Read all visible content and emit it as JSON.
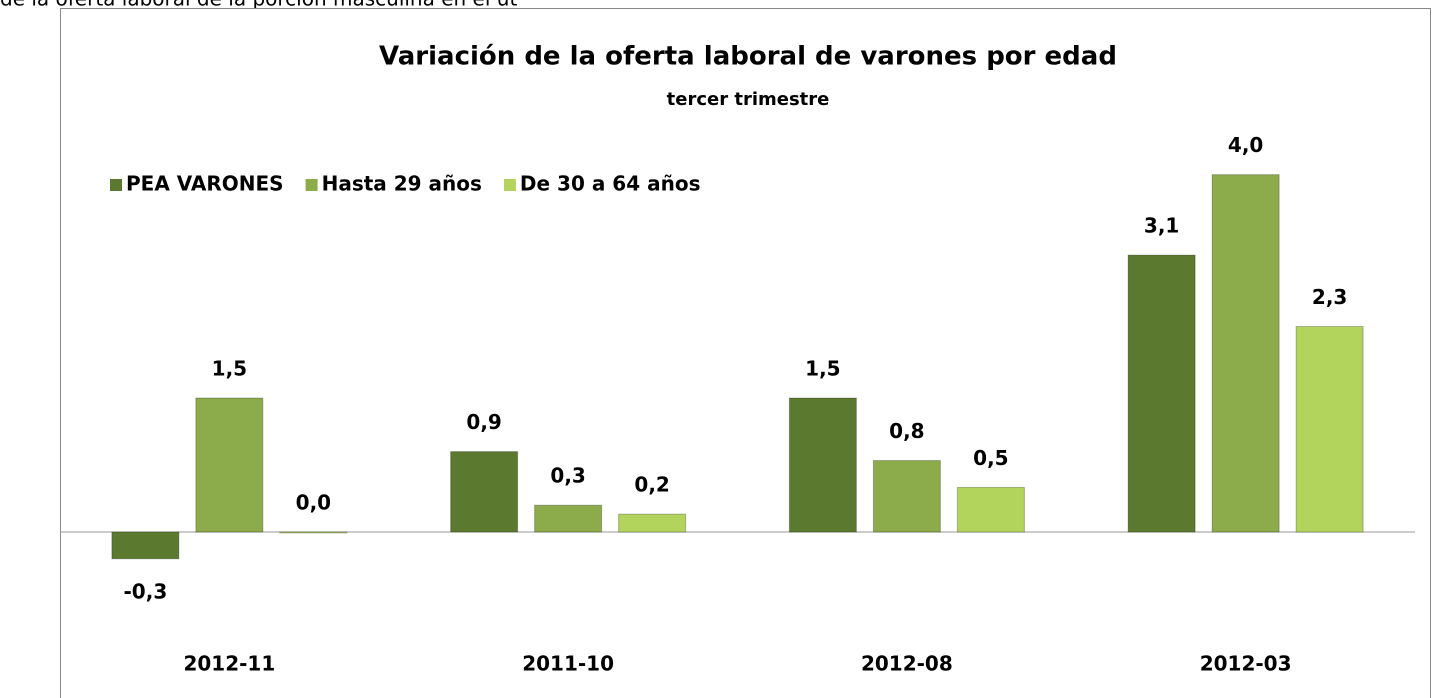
{
  "header_text": "de la oferta laboral de la porción masculina en el út",
  "chart_data": {
    "type": "bar",
    "title": "Variación de la oferta laboral de varones por edad",
    "subtitle": "tercer trimestre",
    "categories": [
      "2012-11",
      "2011-10",
      "2012-08",
      "2012-03"
    ],
    "series": [
      {
        "name": "PEA VARONES",
        "color": "#5b7a30",
        "values": [
          -0.3,
          0.9,
          1.5,
          3.1
        ],
        "value_labels": [
          "-0,3",
          "0,9",
          "1,5",
          "3,1"
        ]
      },
      {
        "name": "Hasta 29 años",
        "color": "#8cab4b",
        "values": [
          1.5,
          0.3,
          0.8,
          4.0
        ],
        "value_labels": [
          "1,5",
          "0,3",
          "0,8",
          "4,0"
        ]
      },
      {
        "name": "De 30 a 64 años",
        "color": "#b3d45c",
        "values": [
          0.0,
          0.2,
          0.5,
          2.3
        ],
        "value_labels": [
          "0,0",
          "0,2",
          "0,5",
          "2,3"
        ]
      }
    ],
    "negative_label_color": "#ff0000",
    "ylim": [
      -1.5,
      4.5
    ],
    "legend": "top-left"
  }
}
